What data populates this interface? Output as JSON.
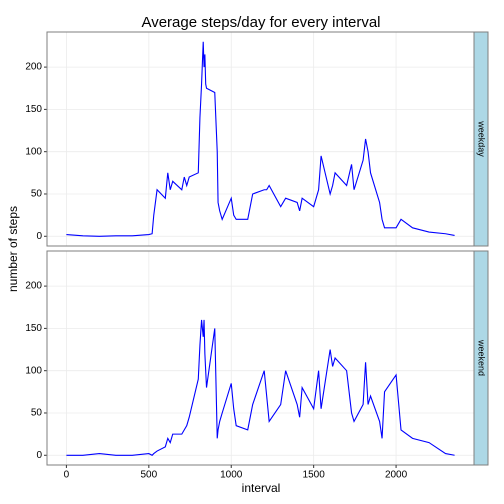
{
  "chart_data": {
    "type": "line",
    "title": "Average steps/day for every interval",
    "x_label": "interval",
    "y_label": "number of steps",
    "x": [
      0,
      100,
      200,
      300,
      400,
      500,
      520,
      530,
      550,
      600,
      615,
      630,
      645,
      700,
      715,
      730,
      745,
      800,
      810,
      820,
      830,
      835,
      840,
      845,
      850,
      900,
      915,
      920,
      930,
      945,
      1000,
      1015,
      1030,
      1100,
      1130,
      1200,
      1215,
      1230,
      1300,
      1330,
      1400,
      1415,
      1430,
      1500,
      1530,
      1545,
      1600,
      1615,
      1630,
      1700,
      1730,
      1745,
      1800,
      1815,
      1830,
      1845,
      1900,
      1915,
      1930,
      2000,
      2030,
      2100,
      2200,
      2300,
      2355
    ],
    "series": [
      {
        "name": "weekday",
        "color": "#0000ff",
        "values": [
          2,
          0.5,
          0,
          0.5,
          0.5,
          2,
          3,
          25,
          55,
          45,
          75,
          55,
          65,
          55,
          70,
          60,
          70,
          75,
          140,
          180,
          230,
          200,
          215,
          180,
          175,
          170,
          100,
          40,
          30,
          20,
          45,
          25,
          20,
          20,
          50,
          55,
          55,
          60,
          35,
          45,
          40,
          30,
          45,
          35,
          55,
          95,
          50,
          60,
          75,
          60,
          85,
          55,
          90,
          115,
          100,
          75,
          40,
          20,
          10,
          10,
          20,
          10,
          5,
          3,
          1
        ]
      },
      {
        "name": "weekend",
        "color": "#0000ff",
        "values": [
          0,
          0,
          2,
          0,
          0,
          2,
          0,
          2,
          5,
          10,
          20,
          15,
          25,
          25,
          30,
          35,
          45,
          90,
          130,
          160,
          140,
          160,
          120,
          100,
          80,
          150,
          20,
          30,
          40,
          50,
          85,
          55,
          35,
          30,
          60,
          100,
          70,
          40,
          60,
          100,
          60,
          45,
          80,
          55,
          100,
          55,
          125,
          105,
          115,
          100,
          50,
          40,
          60,
          110,
          60,
          70,
          40,
          20,
          75,
          95,
          30,
          20,
          15,
          2,
          0
        ]
      }
    ],
    "xlim": [
      -117.75,
      2472.75
    ],
    "ylim": [
      -11.5,
      241.5
    ],
    "xticks": [
      0,
      500,
      1000,
      1500,
      2000
    ],
    "yticks": [
      0,
      50,
      100,
      150,
      200
    ],
    "grid": true,
    "strip_color": "#add8e6"
  }
}
